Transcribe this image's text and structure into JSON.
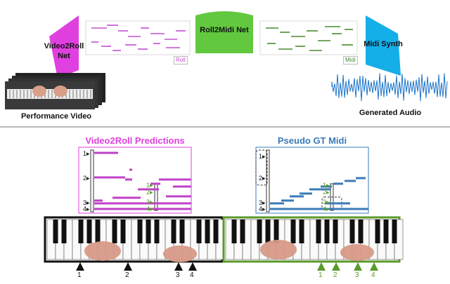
{
  "top": {
    "video2roll_net": [
      "Video2Roll",
      "Net"
    ],
    "roll2midi_net": "Roll2Midi Net",
    "midi_synth": "Midi Synth",
    "roll_tag": "Roll",
    "midi_tag": "Midi",
    "performance_video": "Performance Video",
    "generated_audio": "Generated Audio"
  },
  "bottom": {
    "left_title": "Video2Roll Predictions",
    "right_title": "Pseudo GT Midi",
    "left_marks": [
      "1",
      "2",
      "3",
      "4"
    ],
    "left_inset_marks": [
      "1",
      "2",
      "3",
      "4"
    ],
    "right_marks": [
      "1",
      "2",
      "3",
      "4"
    ],
    "right_inset_marks": [
      "1",
      "2",
      "3",
      "4"
    ],
    "left_keys": [
      "1",
      "2",
      "3",
      "4"
    ],
    "right_keys": [
      "1",
      "2",
      "3",
      "4"
    ]
  },
  "colors": {
    "magenta": "#e040e0",
    "green": "#5a9a2a",
    "blue": "#3a7ab8",
    "cyan": "#14aee8",
    "roll_line": "#c050d0",
    "midi_line": "#4a8a2a"
  }
}
